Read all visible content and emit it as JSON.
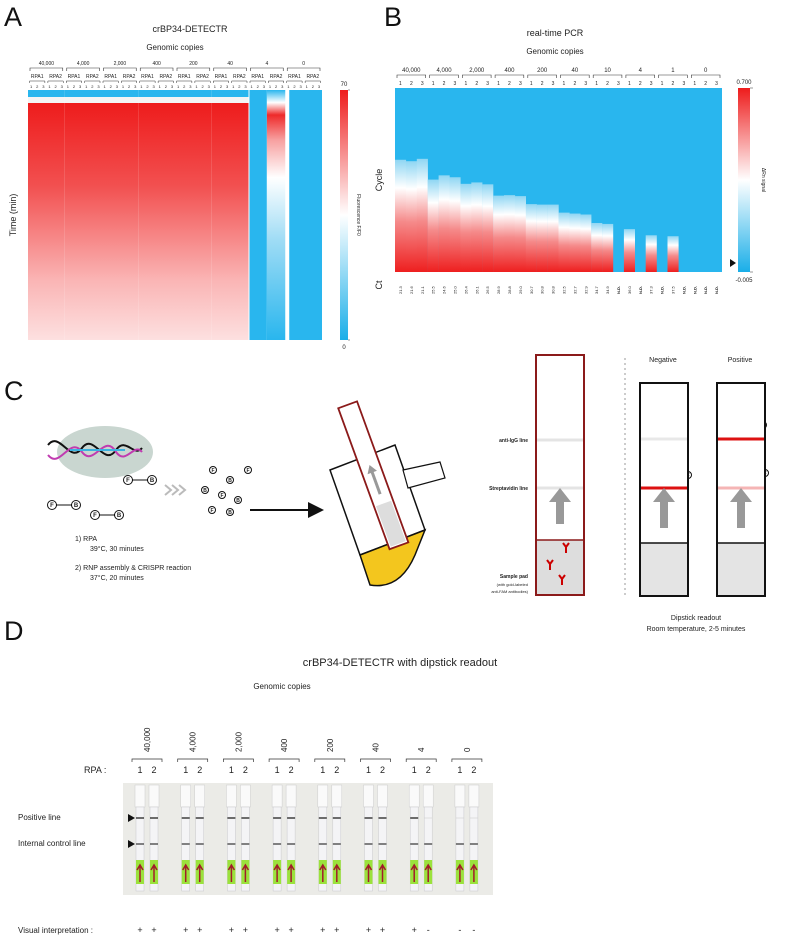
{
  "panel_labels": [
    "A",
    "B",
    "C",
    "D"
  ],
  "panel_a": {
    "title": "crBP34-DETECTR",
    "subtitle": "Genomic copies",
    "groups": [
      "40,000",
      "4,000",
      "2,000",
      "400",
      "200",
      "40",
      "4",
      "0"
    ],
    "rpa_labels": [
      "RPA1",
      "RPA2"
    ],
    "replicates": [
      "1",
      "2",
      "3"
    ],
    "y_label": "Time (min)",
    "colorbar": {
      "label": "Fluorescence F/F0",
      "lim": [
        0,
        70
      ],
      "ticks": [
        70,
        0
      ]
    }
  },
  "panel_b": {
    "title": "real-time PCR",
    "subtitle": "Genomic copies",
    "groups": [
      "40,000",
      "4,000",
      "2,000",
      "400",
      "200",
      "40",
      "10",
      "4",
      "1",
      "0"
    ],
    "replicates": [
      "1",
      "2",
      "3"
    ],
    "y_label": "Cycle",
    "cycle_lim": [
      1,
      40
    ],
    "ct": {
      "label": "Ct",
      "values": [
        21.3,
        21.6,
        21.1,
        25.5,
        24.6,
        25.0,
        26.4,
        26.1,
        26.5,
        28.9,
        28.8,
        29.0,
        30.7,
        30.8,
        30.8,
        32.5,
        32.7,
        32.9,
        34.7,
        34.9,
        null,
        36.0,
        null,
        37.3,
        null,
        37.5,
        null,
        null,
        null,
        null
      ],
      "value_labels": [
        "21.3",
        "21.6",
        "21.1",
        "25.5",
        "24.6",
        "25.0",
        "26.4",
        "26.1",
        "26.5",
        "28.9",
        "28.8",
        "29.0",
        "30.7",
        "30.8",
        "30.8",
        "32.5",
        "32.7",
        "32.9",
        "34.7",
        "34.9",
        "N.D.",
        "36.0",
        "N.D.",
        "37.3",
        "N.D.",
        "37.5",
        "N.D.",
        "N.D.",
        "N.D.",
        "N.D."
      ]
    },
    "colorbar": {
      "label": "ΔRn signal",
      "lim": [
        -0.005,
        0.7
      ],
      "ticks": [
        {
          "value": 0.7,
          "label": "0.700"
        },
        -0.005
      ]
    }
  },
  "panel_c": {
    "steps": [
      "1) RPA",
      "39°C, 30 minutes",
      "2) RNP assembly & CRISPR reaction",
      "37°C, 20 minutes"
    ],
    "reporter": {
      "fam": "F",
      "biotin": "B"
    },
    "strip_labels": {
      "igg": "anti-IgG line",
      "streptavidin": "Streptavidin line",
      "pad": "Sample pad",
      "pad_note1": "(with gold-labeled",
      "pad_note2": "anti-FAM antibodies)"
    },
    "negative": "Negative",
    "positive": "Positive",
    "readout": [
      "Dipstick readout",
      "Room temperature, 2-5 minutes"
    ]
  },
  "panel_d": {
    "title": "crBP34-DETECTR with dipstick readout",
    "subtitle": "Genomic copies",
    "groups": [
      "40,000",
      "4,000",
      "2,000",
      "400",
      "200",
      "40",
      "4",
      "0"
    ],
    "rpa_label": "RPA :",
    "rpa": [
      "1",
      "2"
    ],
    "positive_line": "Positive line",
    "control_line": "Internal control line",
    "visual_label": "Visual interpretation :",
    "visual": [
      "+",
      "+",
      "+",
      "+",
      "+",
      "+",
      "+",
      "+",
      "+",
      "+",
      "+",
      "+",
      "+",
      "-",
      "-",
      "-"
    ]
  }
}
